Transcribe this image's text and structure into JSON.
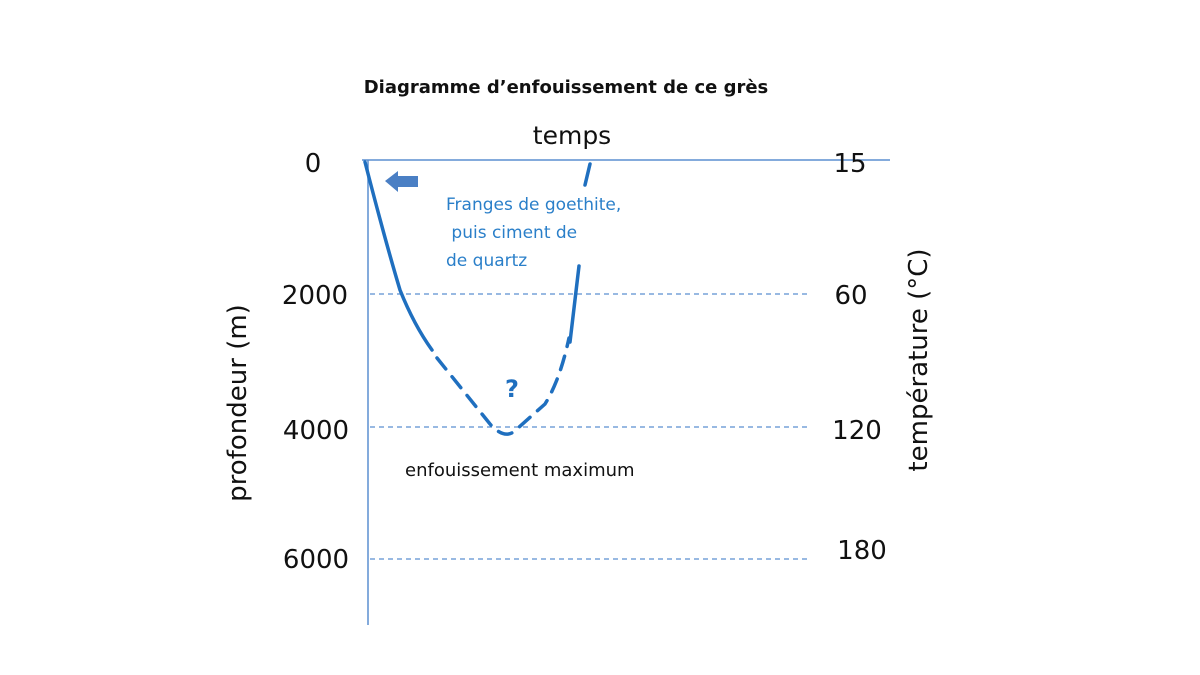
{
  "title": "Diagramme d’enfouissement de ce  grès",
  "top_axis_label": "temps",
  "left_axis": {
    "label": "profondeur (m)",
    "ticks": [
      "0",
      "2000",
      "4000",
      "6000"
    ]
  },
  "right_axis": {
    "label": "température (°C)",
    "ticks": [
      "15",
      "60",
      "120",
      "180"
    ]
  },
  "annotations": {
    "cement": [
      "Franges de goethite,",
      " puis ciment de",
      "de quartz"
    ],
    "question": "?",
    "max_burial": "enfouissement maximum"
  },
  "icons": {
    "arrow": "arrow-left-icon"
  },
  "colors": {
    "curve": "#1f6fbf",
    "axis": "#5b8fd0",
    "grid": "#5b8fd0",
    "annotation": "#2a7fc9"
  }
}
